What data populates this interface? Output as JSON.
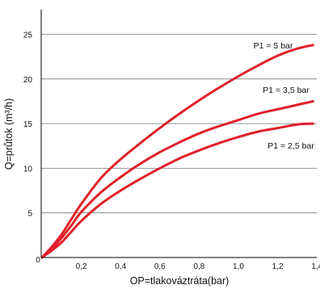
{
  "chart_data": {
    "type": "line",
    "title": "",
    "xlabel": "OP=tlakováztráta(bar)",
    "ylabel": "Q=průtok (m³/h)",
    "xlim": [
      0,
      1.4
    ],
    "ylim": [
      0,
      27.5
    ],
    "x_ticks": [
      "0",
      "0,2",
      "0,4",
      "0,6",
      "0,8",
      "1,0",
      "1,2",
      "1,4"
    ],
    "x_tick_values": [
      0,
      0.2,
      0.4,
      0.6,
      0.8,
      1.0,
      1.2,
      1.4
    ],
    "y_ticks": [
      "5",
      "10",
      "15",
      "20",
      "25"
    ],
    "y_tick_values": [
      5,
      10,
      15,
      20,
      25
    ],
    "grid": "horizontal",
    "line_color": "#e0202a",
    "series": [
      {
        "name": "P1 = 5 bar",
        "x": [
          0,
          0.05,
          0.1,
          0.15,
          0.2,
          0.3,
          0.4,
          0.5,
          0.6,
          0.7,
          0.8,
          0.9,
          1.0,
          1.1,
          1.2,
          1.3,
          1.38
        ],
        "y": [
          0,
          1.2,
          2.6,
          4.3,
          6.0,
          8.9,
          11.0,
          12.8,
          14.5,
          16.1,
          17.6,
          19.0,
          20.3,
          21.5,
          22.6,
          23.4,
          23.8
        ]
      },
      {
        "name": "P1 = 3,5 bar",
        "x": [
          0,
          0.05,
          0.1,
          0.15,
          0.2,
          0.3,
          0.4,
          0.5,
          0.6,
          0.7,
          0.8,
          0.9,
          1.0,
          1.1,
          1.2,
          1.3,
          1.38
        ],
        "y": [
          0,
          1.0,
          2.2,
          3.6,
          5.1,
          7.3,
          9.0,
          10.5,
          11.8,
          12.9,
          13.9,
          14.7,
          15.4,
          16.1,
          16.6,
          17.1,
          17.5
        ]
      },
      {
        "name": "P1 = 2,5 bar",
        "x": [
          0,
          0.05,
          0.1,
          0.15,
          0.2,
          0.3,
          0.4,
          0.5,
          0.6,
          0.7,
          0.8,
          0.9,
          1.0,
          1.1,
          1.2,
          1.3,
          1.38
        ],
        "y": [
          0,
          0.8,
          1.7,
          2.9,
          4.1,
          6.0,
          7.5,
          8.8,
          10.0,
          11.1,
          12.0,
          12.8,
          13.5,
          14.1,
          14.5,
          14.9,
          15.0
        ]
      }
    ]
  }
}
